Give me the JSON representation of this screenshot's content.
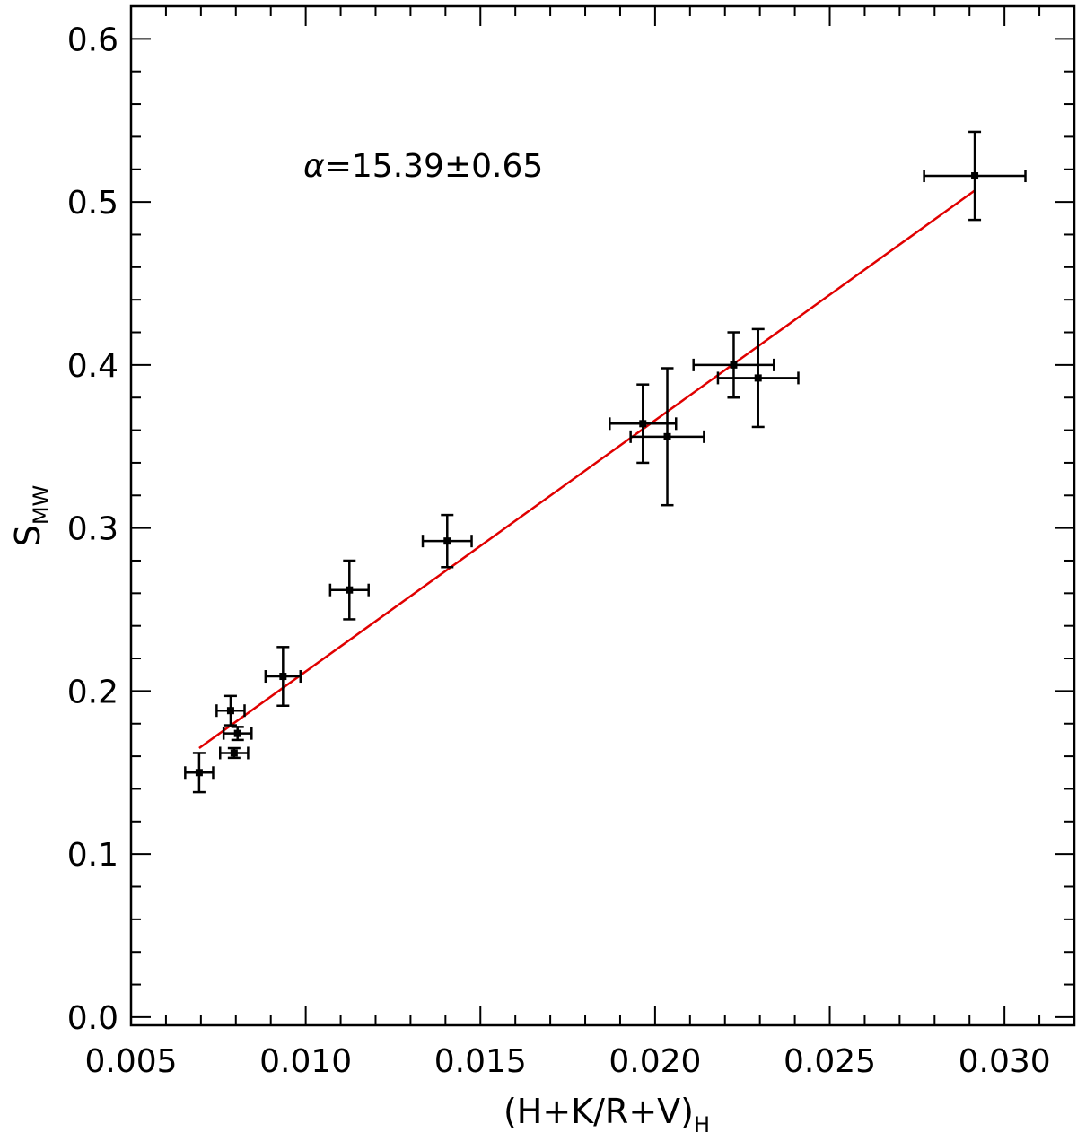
{
  "chart_data": {
    "type": "scatter",
    "xlabel": {
      "main": "(H+K/R+V)",
      "subscript": "H"
    },
    "ylabel": {
      "main": "S",
      "subscript": "MW"
    },
    "xlim": [
      0.005,
      0.032
    ],
    "ylim": [
      -0.005,
      0.62
    ],
    "xticks": [
      {
        "value": 0.005,
        "label": "0.005"
      },
      {
        "value": 0.01,
        "label": "0.010"
      },
      {
        "value": 0.015,
        "label": "0.015"
      },
      {
        "value": 0.02,
        "label": "0.020"
      },
      {
        "value": 0.025,
        "label": "0.025"
      },
      {
        "value": 0.03,
        "label": "0.030"
      }
    ],
    "yticks": [
      {
        "value": 0.0,
        "label": "0.0"
      },
      {
        "value": 0.1,
        "label": "0.1"
      },
      {
        "value": 0.2,
        "label": "0.2"
      },
      {
        "value": 0.3,
        "label": "0.3"
      },
      {
        "value": 0.4,
        "label": "0.4"
      },
      {
        "value": 0.5,
        "label": "0.5"
      },
      {
        "value": 0.6,
        "label": "0.6"
      }
    ],
    "x_minor_step": 0.001,
    "y_minor_step": 0.02,
    "annotation": {
      "symbol": "α",
      "text": "=15.39±0.65"
    },
    "points": [
      {
        "x": 0.00695,
        "y": 0.15,
        "xerr": 0.0004,
        "yerr": 0.012
      },
      {
        "x": 0.00785,
        "y": 0.188,
        "xerr": 0.0004,
        "yerr": 0.009
      },
      {
        "x": 0.00805,
        "y": 0.174,
        "xerr": 0.0004,
        "yerr": 0.004
      },
      {
        "x": 0.00795,
        "y": 0.162,
        "xerr": 0.0004,
        "yerr": 0.003
      },
      {
        "x": 0.00935,
        "y": 0.209,
        "xerr": 0.0005,
        "yerr": 0.018
      },
      {
        "x": 0.01125,
        "y": 0.262,
        "xerr": 0.00055,
        "yerr": 0.018
      },
      {
        "x": 0.01405,
        "y": 0.292,
        "xerr": 0.0007,
        "yerr": 0.016
      },
      {
        "x": 0.01965,
        "y": 0.364,
        "xerr": 0.00095,
        "yerr": 0.024
      },
      {
        "x": 0.02035,
        "y": 0.356,
        "xerr": 0.00105,
        "yerr": 0.042
      },
      {
        "x": 0.02225,
        "y": 0.4,
        "xerr": 0.00115,
        "yerr": 0.02
      },
      {
        "x": 0.02295,
        "y": 0.392,
        "xerr": 0.00115,
        "yerr": 0.03
      },
      {
        "x": 0.02915,
        "y": 0.516,
        "xerr": 0.00145,
        "yerr": 0.027
      }
    ],
    "fit": {
      "x": [
        0.00695,
        0.02915
      ],
      "y": [
        0.165,
        0.507
      ],
      "color": "#e00000"
    },
    "point_color": "#000000"
  }
}
